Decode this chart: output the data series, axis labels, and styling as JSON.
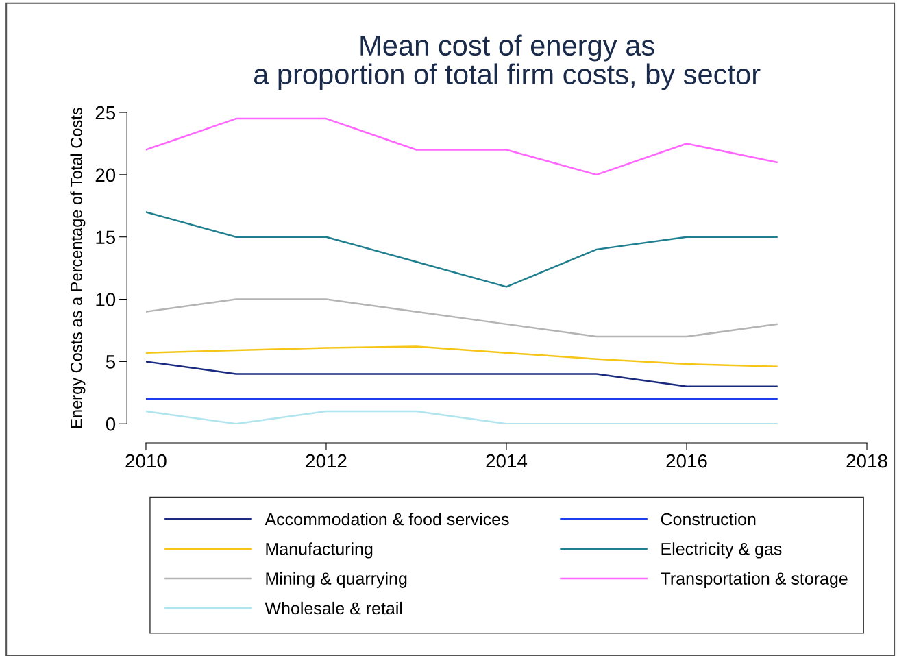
{
  "chart_data": {
    "type": "line",
    "title": "Mean cost of energy as\na proportion of total firm costs, by sector",
    "ylabel": "Energy Costs as a Percentage of Total Costs",
    "x": [
      2010,
      2011,
      2012,
      2013,
      2014,
      2015,
      2016,
      2017
    ],
    "xlim": [
      2010,
      2018
    ],
    "xticks": [
      2010,
      2012,
      2014,
      2016,
      2018
    ],
    "ylim": [
      0,
      25
    ],
    "yticks": [
      0,
      5,
      10,
      15,
      20,
      25
    ],
    "grid": false,
    "legend": "bottom",
    "marker": "none",
    "line_style": "solid",
    "series": [
      {
        "name": "Accommodation & food services",
        "color": "#1a2a80",
        "values": [
          5,
          4,
          4,
          4,
          4,
          4,
          3,
          3
        ]
      },
      {
        "name": "Manufacturing",
        "color": "#f5c518",
        "values": [
          5.7,
          5.9,
          6.1,
          6.2,
          5.7,
          5.2,
          4.8,
          4.6
        ]
      },
      {
        "name": "Mining & quarrying",
        "color": "#b4b4b4",
        "values": [
          9,
          10,
          10,
          9,
          8,
          7,
          7,
          8
        ]
      },
      {
        "name": "Wholesale & retail",
        "color": "#b0e4ee",
        "values": [
          1,
          0,
          1,
          1,
          0,
          0,
          0,
          0
        ]
      },
      {
        "name": "Construction",
        "color": "#1e3cf0",
        "values": [
          2,
          2,
          2,
          2,
          2,
          2,
          2,
          2
        ]
      },
      {
        "name": "Electricity & gas",
        "color": "#1f7f8f",
        "values": [
          17,
          15,
          15,
          13,
          11,
          14,
          15,
          15
        ]
      },
      {
        "name": "Transportation & storage",
        "color": "#ff66ff",
        "values": [
          22,
          24.5,
          24.5,
          22,
          22,
          20,
          22.5,
          21
        ]
      }
    ]
  }
}
